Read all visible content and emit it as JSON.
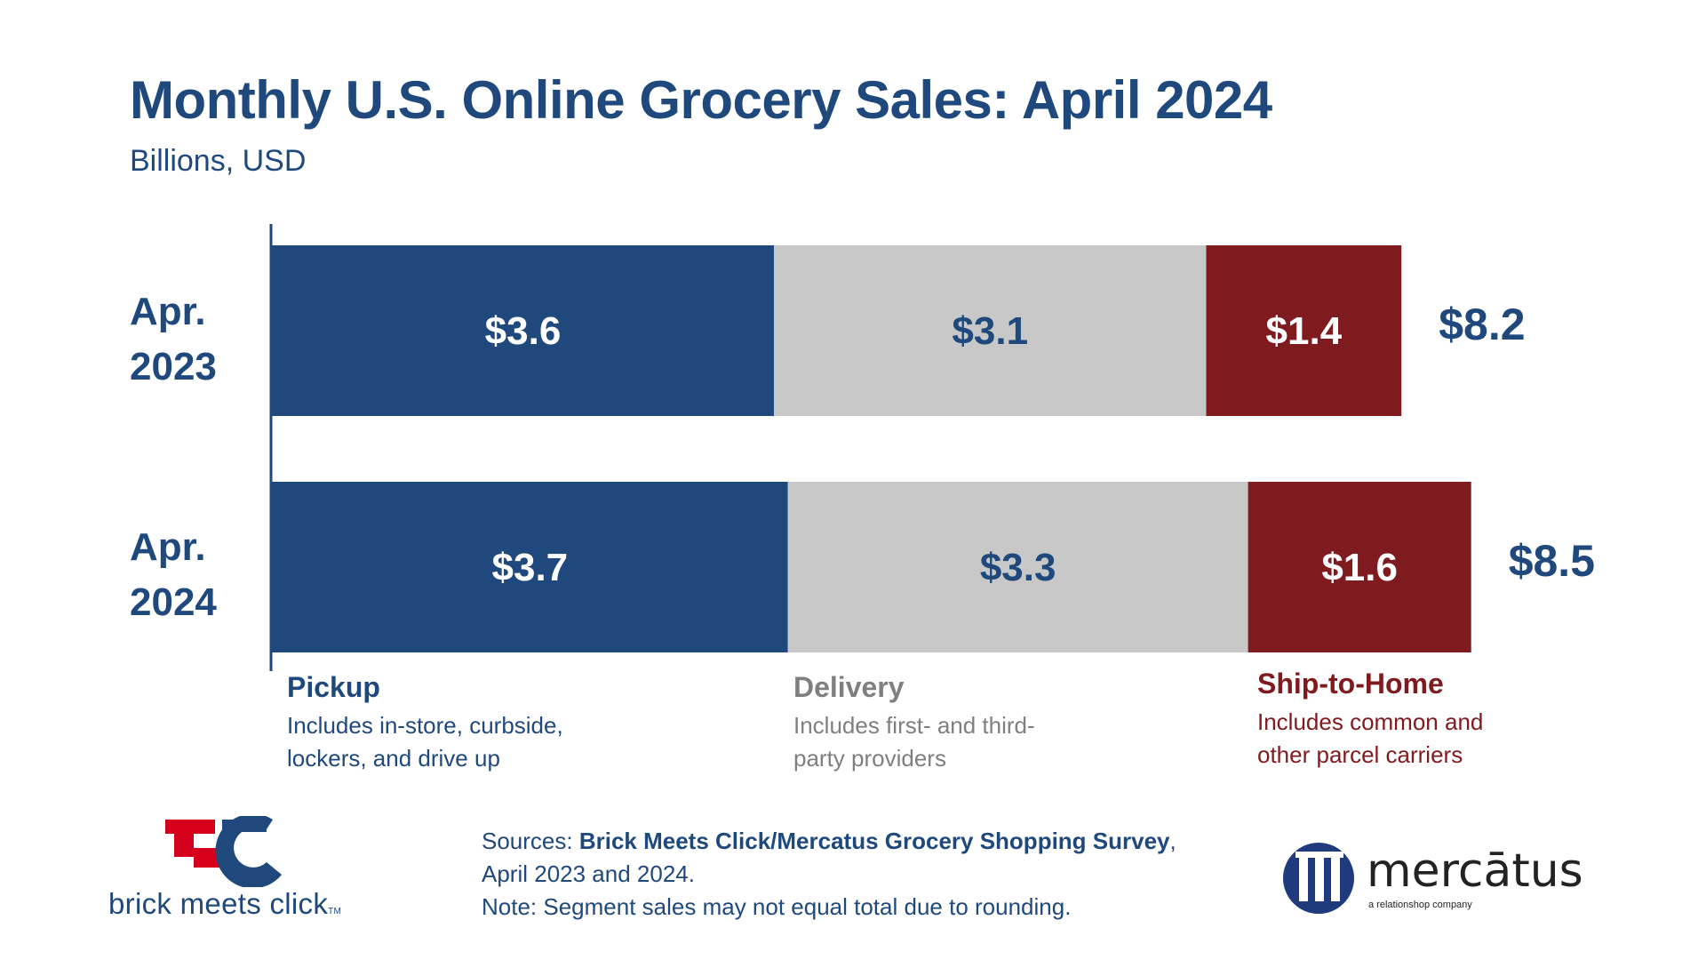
{
  "title": "Monthly U.S. Online Grocery Sales: April 2024",
  "subtitle": "Billions, USD",
  "chart_data": {
    "type": "bar",
    "orientation": "horizontal",
    "stacked": true,
    "categories": [
      "Apr. 2023",
      "Apr. 2024"
    ],
    "series": [
      {
        "name": "Pickup",
        "values": [
          3.6,
          3.7
        ],
        "color": "#1f497d",
        "label_color": "#ffffff"
      },
      {
        "name": "Delivery",
        "values": [
          3.1,
          3.3
        ],
        "color": "#c8c8c8",
        "label_color": "#1f497d"
      },
      {
        "name": "Ship-to-Home",
        "values": [
          1.4,
          1.6
        ],
        "color": "#7f1a1f",
        "label_color": "#ffffff"
      }
    ],
    "value_labels": [
      [
        "$3.6",
        "$3.1",
        "$1.4"
      ],
      [
        "$3.7",
        "$3.3",
        "$1.6"
      ]
    ],
    "totals": [
      "$8.2",
      "$8.5"
    ],
    "title": "Monthly U.S. Online Grocery Sales: April 2024",
    "subtitle": "Billions, USD",
    "xlim": [
      0,
      8.5
    ],
    "grid": false,
    "legend_placement": "bottom"
  },
  "year_labels": [
    {
      "line1": "Apr.",
      "line2": "2023"
    },
    {
      "line1": "Apr.",
      "line2": "2024"
    }
  ],
  "legend": [
    {
      "title": "Pickup",
      "desc": "Includes in-store, curbside, lockers, and drive up"
    },
    {
      "title": "Delivery",
      "desc": "Includes first- and third-party providers"
    },
    {
      "title": "Ship-to-Home",
      "desc": "Includes common and other parcel carriers"
    }
  ],
  "sources": {
    "prefix": "Sources: ",
    "bold": "Brick Meets Click/Mercatus Grocery Shopping Survey",
    "suffix": ",",
    "line2": "April 2023 and 2024.",
    "line3": "Note: Segment sales may not equal total due to rounding."
  },
  "logos": {
    "bmc_text": "brick meets click",
    "bmc_tm": "TM",
    "mercatus_text": "mercātus",
    "mercatus_sub": "a relationshop company"
  },
  "colors": {
    "navy": "#1f497d",
    "gray": "#c8c8c8",
    "maroon": "#7f1a1f",
    "bmc_red": "#d6001c"
  }
}
